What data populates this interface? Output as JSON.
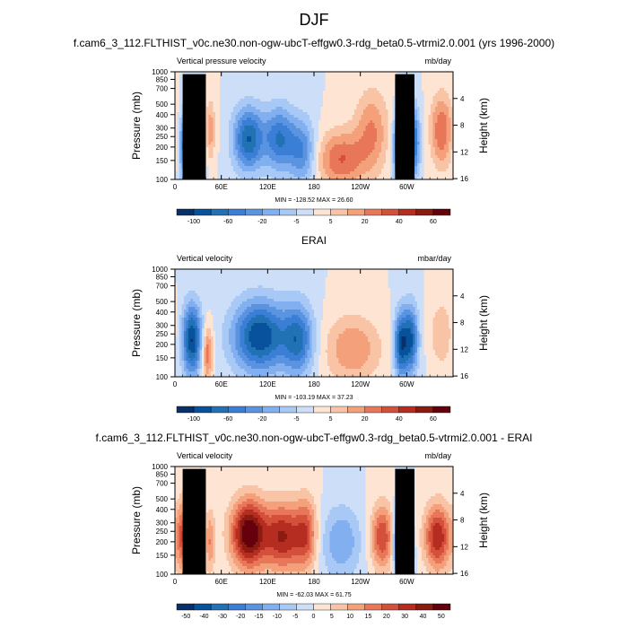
{
  "page": {
    "title": "DJF"
  },
  "chart_data": [
    {
      "type": "heatmap",
      "title": "f.cam6_3_112.FLTHIST_v0c.ne30.non-ogw-ubcT-effgw0.3-rdg_beta0.5-vtrmi2.0.001 (yrs 1996-2000)",
      "left_label": "Vertical pressure velocity",
      "right_label": "mb/day",
      "ylabel": "Pressure (mb)",
      "ylabel_right": "Height (km)",
      "x_ticks": [
        "0",
        "60E",
        "120E",
        "180",
        "120W",
        "60W"
      ],
      "y_ticks": [
        "100",
        "150",
        "200",
        "250",
        "300",
        "400",
        "500",
        "700",
        "850",
        "1000"
      ],
      "y_right_ticks": [
        "16",
        "12",
        "8",
        "4"
      ],
      "stats": "MIN = -128.52  MAX = 26.60",
      "colorbar_labels": [
        "-100",
        "-60",
        "-20",
        "-5",
        "5",
        "20",
        "40",
        "60"
      ],
      "features": [
        {
          "lon": 25,
          "p": 450,
          "amp": -9,
          "slon": 8,
          "sp": 320
        },
        {
          "lon": 15,
          "p": 500,
          "amp": -5,
          "slon": 6,
          "sp": 300
        },
        {
          "lon": 45,
          "p": 350,
          "amp": 3,
          "slon": 5,
          "sp": 200
        },
        {
          "lon": 95,
          "p": 420,
          "amp": -6,
          "slon": 14,
          "sp": 260
        },
        {
          "lon": 135,
          "p": 420,
          "amp": -5,
          "slon": 14,
          "sp": 260
        },
        {
          "lon": 165,
          "p": 550,
          "amp": -4,
          "slon": 12,
          "sp": 350
        },
        {
          "lon": 215,
          "p": 650,
          "amp": 4,
          "slon": 22,
          "sp": 350
        },
        {
          "lon": 255,
          "p": 350,
          "amp": 3,
          "slon": 15,
          "sp": 300
        },
        {
          "lon": 292,
          "p": 500,
          "amp": -9,
          "slon": 6,
          "sp": 320
        },
        {
          "lon": 308,
          "p": 450,
          "amp": -6,
          "slon": 6,
          "sp": 300
        },
        {
          "lon": 345,
          "p": 350,
          "amp": 4,
          "slon": 10,
          "sp": 250
        }
      ],
      "topography": [
        {
          "lon0": 10,
          "lon1": 40,
          "p": 950
        },
        {
          "lon0": 28,
          "lon1": 36,
          "p": 850
        },
        {
          "lon0": 285,
          "lon1": 310,
          "p": 950
        }
      ]
    },
    {
      "type": "heatmap",
      "title": "ERAI",
      "left_label": "Vertical velocity",
      "right_label": "mbar/day",
      "ylabel": "Pressure (mb)",
      "ylabel_right": "Height (km)",
      "x_ticks": [
        "0",
        "60E",
        "120E",
        "180",
        "120W",
        "60W"
      ],
      "y_ticks": [
        "100",
        "150",
        "200",
        "250",
        "300",
        "400",
        "500",
        "700",
        "850",
        "1000"
      ],
      "y_right_ticks": [
        "16",
        "12",
        "8",
        "4"
      ],
      "stats": "MIN = -103.19  MAX = 37.23",
      "colorbar_labels": [
        "-100",
        "-60",
        "-20",
        "-5",
        "5",
        "20",
        "40",
        "60"
      ],
      "features": [
        {
          "lon": 22,
          "p": 450,
          "amp": -7,
          "slon": 9,
          "sp": 320
        },
        {
          "lon": 42,
          "p": 600,
          "amp": 4,
          "slon": 5,
          "sp": 300
        },
        {
          "lon": 110,
          "p": 420,
          "amp": -7,
          "slon": 25,
          "sp": 300
        },
        {
          "lon": 160,
          "p": 450,
          "amp": -5,
          "slon": 14,
          "sp": 320
        },
        {
          "lon": 230,
          "p": 550,
          "amp": 3,
          "slon": 25,
          "sp": 350
        },
        {
          "lon": 292,
          "p": 500,
          "amp": -6,
          "slon": 6,
          "sp": 320
        },
        {
          "lon": 305,
          "p": 450,
          "amp": -6,
          "slon": 7,
          "sp": 300
        },
        {
          "lon": 345,
          "p": 400,
          "amp": 2,
          "slon": 10,
          "sp": 250
        }
      ],
      "topography": []
    },
    {
      "type": "heatmap",
      "title": "f.cam6_3_112.FLTHIST_v0c.ne30.non-ogw-ubcT-effgw0.3-rdg_beta0.5-vtrmi2.0.001 - ERAI",
      "left_label": "Vertical velocity",
      "right_label": "mb/day",
      "ylabel": "Pressure (mb)",
      "ylabel_right": "Height (km)",
      "x_ticks": [
        "0",
        "60E",
        "120E",
        "180",
        "120W",
        "60W"
      ],
      "y_ticks": [
        "100",
        "150",
        "200",
        "250",
        "300",
        "400",
        "500",
        "700",
        "850",
        "1000"
      ],
      "y_right_ticks": [
        "16",
        "12",
        "8",
        "4"
      ],
      "stats": "MIN = -62.03  MAX = 61.75",
      "colorbar_labels": [
        "-50",
        "-40",
        "-30",
        "-20",
        "-15",
        "-10",
        "-5",
        "0",
        "5",
        "10",
        "15",
        "20",
        "30",
        "40",
        "50"
      ],
      "features": [
        {
          "lon": 12,
          "p": 450,
          "amp": 5,
          "slon": 7,
          "sp": 320
        },
        {
          "lon": 30,
          "p": 550,
          "amp": -4,
          "slon": 5,
          "sp": 300
        },
        {
          "lon": 45,
          "p": 500,
          "amp": 3,
          "slon": 5,
          "sp": 300
        },
        {
          "lon": 95,
          "p": 420,
          "amp": 8,
          "slon": 16,
          "sp": 280
        },
        {
          "lon": 140,
          "p": 450,
          "amp": 6,
          "slon": 18,
          "sp": 300
        },
        {
          "lon": 170,
          "p": 420,
          "amp": 4,
          "slon": 10,
          "sp": 300
        },
        {
          "lon": 215,
          "p": 500,
          "amp": -3,
          "slon": 18,
          "sp": 350
        },
        {
          "lon": 268,
          "p": 450,
          "amp": 5,
          "slon": 10,
          "sp": 280
        },
        {
          "lon": 288,
          "p": 500,
          "amp": -6,
          "slon": 4,
          "sp": 300
        },
        {
          "lon": 303,
          "p": 500,
          "amp": -5,
          "slon": 4,
          "sp": 300
        },
        {
          "lon": 340,
          "p": 450,
          "amp": 6,
          "slon": 12,
          "sp": 280
        }
      ],
      "topography": [
        {
          "lon0": 10,
          "lon1": 40,
          "p": 950
        },
        {
          "lon0": 285,
          "lon1": 310,
          "p": 950
        }
      ]
    }
  ],
  "colors": {
    "diverging": [
      "#08306b",
      "#08519c",
      "#2171b5",
      "#3a7fd5",
      "#5a93e0",
      "#82aff0",
      "#a8c8f5",
      "#cddff8",
      "#fde4d3",
      "#f9c4a6",
      "#f3a07b",
      "#e8775a",
      "#d4503b",
      "#b42d20",
      "#8b1a10",
      "#67000d"
    ],
    "background": "#ffffff",
    "topography": "#000000"
  }
}
